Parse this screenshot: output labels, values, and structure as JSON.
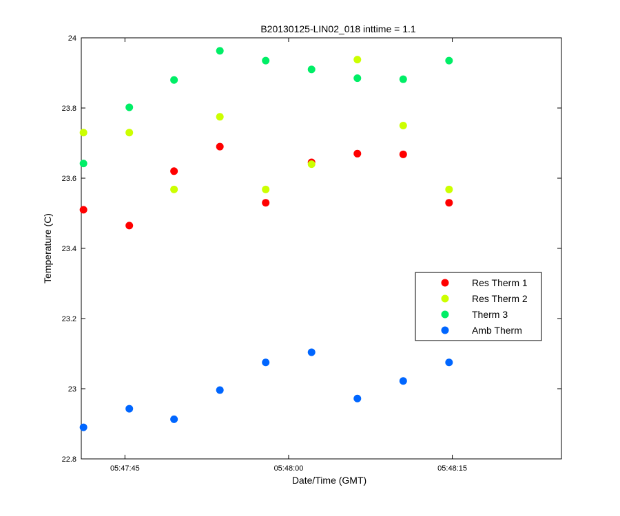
{
  "chart_data": {
    "type": "scatter",
    "title": "B20130125-LIN02_018 inttime = 1.1",
    "xlabel": "Date/Time (GMT)",
    "ylabel": "Temperature (C)",
    "ylim": [
      22.8,
      24.0
    ],
    "y_ticks": [
      "22.8",
      "23",
      "23.2",
      "23.4",
      "23.6",
      "23.8",
      "24"
    ],
    "xlim": [
      "05:47:41",
      "05:48:25"
    ],
    "x_ticks": [
      "05:47:45",
      "05:48:00",
      "05:48:15"
    ],
    "grid": false,
    "legend_position": "right, lower-middle",
    "x": [
      "05:47:41.2",
      "05:47:45.4",
      "05:47:49.5",
      "05:47:53.7",
      "05:47:57.9",
      "05:48:02.1",
      "05:48:06.3",
      "05:48:10.5",
      "05:48:14.7"
    ],
    "series": [
      {
        "name": "Res Therm 1",
        "color": "#ff0000",
        "values": [
          23.51,
          23.465,
          23.62,
          23.69,
          23.53,
          23.645,
          23.67,
          23.668,
          23.53
        ]
      },
      {
        "name": "Res Therm 2",
        "color": "#ccff00",
        "values": [
          23.73,
          23.73,
          23.568,
          23.775,
          23.568,
          23.64,
          23.938,
          23.75,
          23.568
        ]
      },
      {
        "name": "Therm 3",
        "color": "#00ee66",
        "values": [
          23.642,
          23.802,
          23.88,
          23.963,
          23.935,
          23.91,
          23.885,
          23.882,
          23.935
        ]
      },
      {
        "name": "Amb Therm",
        "color": "#0066ff",
        "values": [
          22.89,
          22.943,
          22.913,
          22.996,
          23.075,
          23.104,
          22.972,
          23.022,
          23.075
        ]
      }
    ]
  }
}
